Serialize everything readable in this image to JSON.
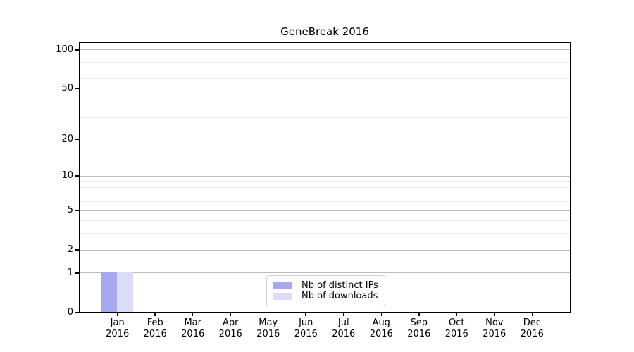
{
  "chart_data": {
    "type": "bar",
    "title": "GeneBreak 2016",
    "categories": [
      "Jan 2016",
      "Feb 2016",
      "Mar 2016",
      "Apr 2016",
      "May 2016",
      "Jun 2016",
      "Jul 2016",
      "Aug 2016",
      "Sep 2016",
      "Oct 2016",
      "Nov 2016",
      "Dec 2016"
    ],
    "series": [
      {
        "name": "Nb of distinct IPs",
        "color": "#a8a8f2",
        "values": [
          1,
          0,
          0,
          0,
          0,
          0,
          0,
          0,
          0,
          0,
          0,
          0
        ]
      },
      {
        "name": "Nb of downloads",
        "color": "#dbdbfa",
        "values": [
          1,
          0,
          0,
          0,
          0,
          0,
          0,
          0,
          0,
          0,
          0,
          0
        ]
      }
    ],
    "xlabel": "",
    "ylabel": "",
    "yscale": "log1p",
    "ylim": [
      0,
      114.7
    ],
    "yticks_major": [
      0,
      1,
      2,
      5,
      10,
      20,
      50,
      100
    ],
    "yticks_minor": [
      3,
      4,
      6,
      7,
      8,
      9,
      30,
      40,
      60,
      70,
      80,
      90
    ],
    "grid": "horizontal",
    "legend_position": "lower-center-inside"
  },
  "colors": {
    "major_grid": "#bdbdbd",
    "minor_grid": "#ececec",
    "spine": "#000000",
    "text": "#000000",
    "background": "#ffffff"
  }
}
